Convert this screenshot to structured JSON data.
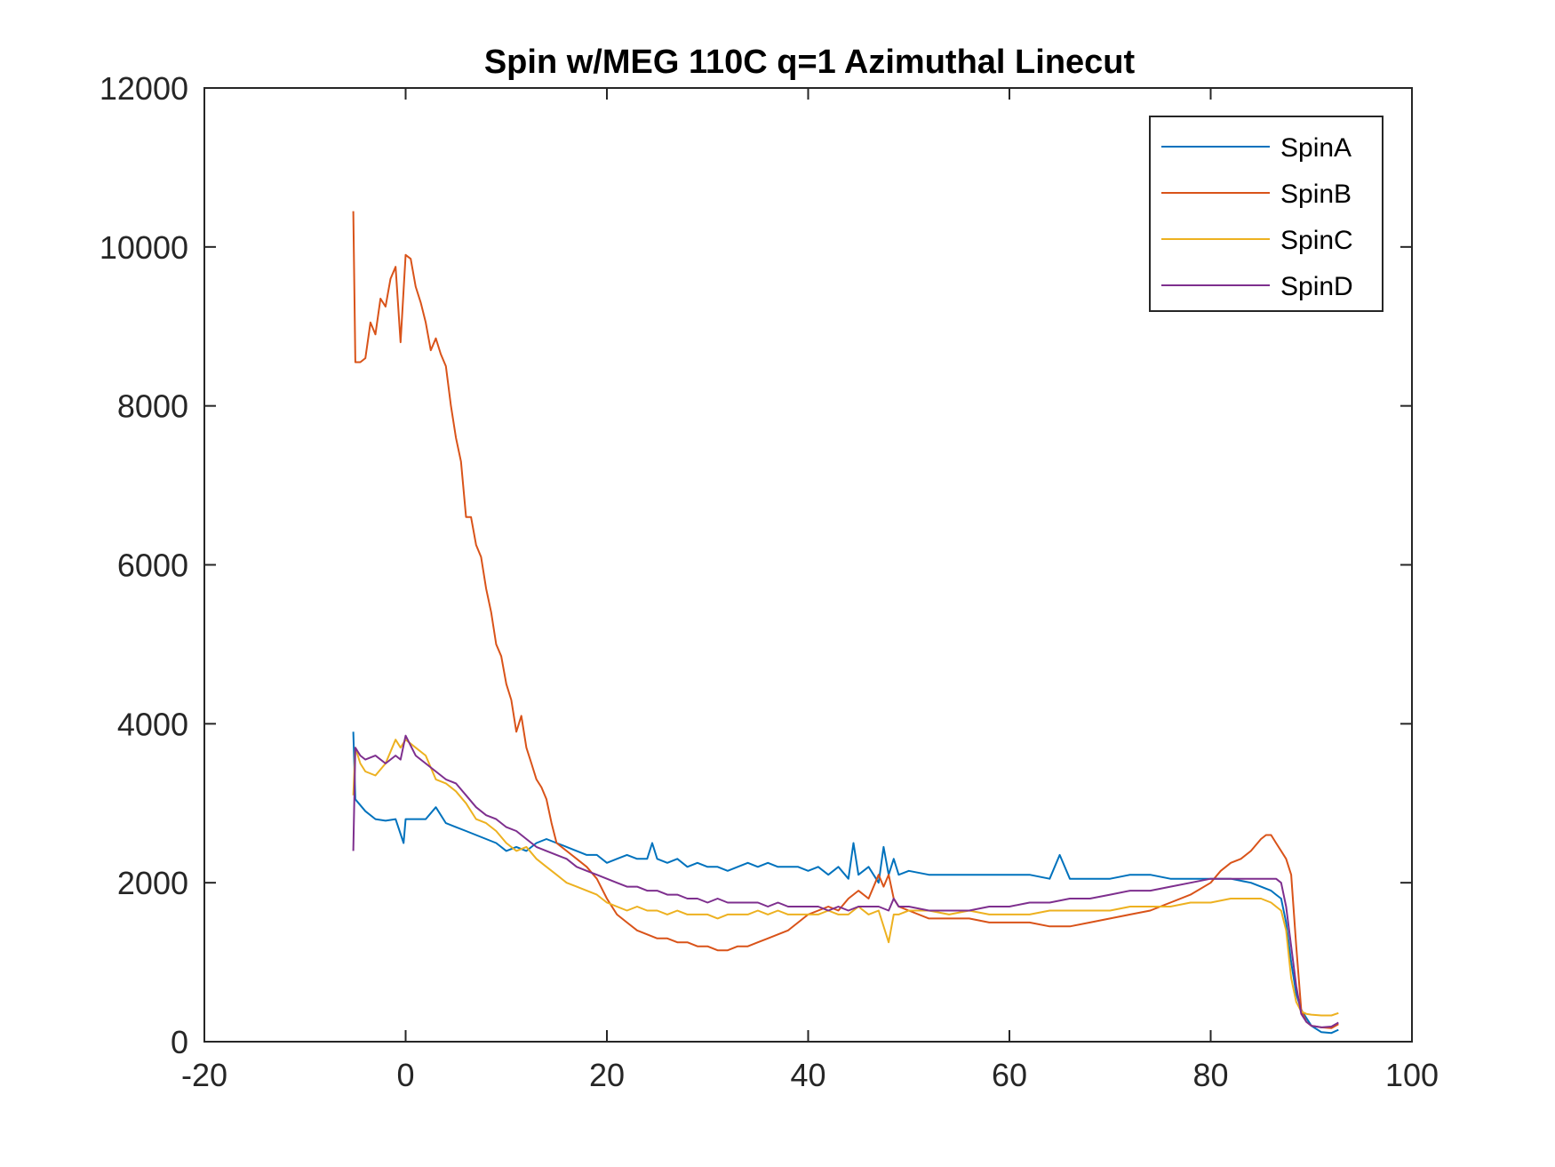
{
  "chart_data": {
    "type": "line",
    "title": "Spin w/MEG 110C q=1 Azimuthal Linecut",
    "xlabel": "",
    "ylabel": "",
    "xlim": [
      -20,
      100
    ],
    "ylim": [
      0,
      12000
    ],
    "xticks": [
      -20,
      0,
      20,
      40,
      60,
      80,
      100
    ],
    "yticks": [
      0,
      2000,
      4000,
      6000,
      8000,
      10000,
      12000
    ],
    "xtick_labels": [
      "-20",
      "0",
      "20",
      "40",
      "60",
      "80",
      "100"
    ],
    "ytick_labels": [
      "0",
      "2000",
      "4000",
      "6000",
      "8000",
      "10000",
      "12000"
    ],
    "grid": false,
    "legend_position": "top-right",
    "series": [
      {
        "name": "SpinA",
        "color": "#0072BD",
        "x": [
          -5.2,
          -5.0,
          -4.0,
          -3.0,
          -2.0,
          -1.0,
          -0.2,
          0.0,
          1.0,
          2.0,
          3.0,
          4.0,
          5.0,
          6.0,
          7.0,
          8.0,
          9.0,
          10.0,
          11.0,
          12.0,
          13.0,
          14.0,
          15.0,
          16.0,
          17.0,
          18.0,
          19.0,
          20.0,
          21.0,
          22.0,
          23.0,
          24.0,
          24.5,
          25.0,
          26.0,
          27.0,
          28.0,
          29.0,
          30.0,
          31.0,
          32.0,
          33.0,
          34.0,
          35.0,
          36.0,
          37.0,
          38.0,
          39.0,
          40.0,
          41.0,
          42.0,
          43.0,
          44.0,
          44.5,
          45.0,
          46.0,
          47.0,
          47.5,
          48.0,
          48.5,
          49.0,
          50.0,
          52.0,
          54.0,
          56.0,
          58.0,
          60.0,
          62.0,
          64.0,
          65.0,
          66.0,
          68.0,
          70.0,
          72.0,
          74.0,
          76.0,
          78.0,
          80.0,
          82.0,
          84.0,
          85.0,
          86.0,
          86.5,
          87.0,
          87.5,
          88.0,
          88.5,
          89.0,
          89.5,
          90.0,
          91.0,
          92.0,
          92.7
        ],
        "values": [
          3900,
          3050,
          2900,
          2800,
          2780,
          2800,
          2500,
          2800,
          2800,
          2800,
          2950,
          2750,
          2700,
          2650,
          2600,
          2550,
          2500,
          2400,
          2450,
          2400,
          2500,
          2550,
          2500,
          2450,
          2400,
          2350,
          2350,
          2250,
          2300,
          2350,
          2300,
          2300,
          2500,
          2300,
          2250,
          2300,
          2200,
          2250,
          2200,
          2200,
          2150,
          2200,
          2250,
          2200,
          2250,
          2200,
          2200,
          2200,
          2150,
          2200,
          2100,
          2200,
          2050,
          2500,
          2100,
          2200,
          2000,
          2450,
          2100,
          2300,
          2100,
          2150,
          2100,
          2100,
          2100,
          2100,
          2100,
          2100,
          2050,
          2350,
          2050,
          2050,
          2050,
          2100,
          2100,
          2050,
          2050,
          2050,
          2050,
          2000,
          1950,
          1900,
          1850,
          1800,
          1500,
          1000,
          600,
          400,
          300,
          200,
          120,
          110,
          150
        ]
      },
      {
        "name": "SpinB",
        "color": "#D95319",
        "x": [
          -5.2,
          -5.0,
          -4.5,
          -4.0,
          -3.5,
          -3.0,
          -2.5,
          -2.0,
          -1.5,
          -1.0,
          -0.5,
          0.0,
          0.5,
          1.0,
          1.5,
          2.0,
          2.5,
          3.0,
          3.5,
          4.0,
          4.5,
          5.0,
          5.5,
          6.0,
          6.5,
          7.0,
          7.5,
          8.0,
          8.5,
          9.0,
          9.5,
          10.0,
          10.5,
          11.0,
          11.5,
          12.0,
          12.5,
          13.0,
          13.5,
          14.0,
          14.5,
          15.0,
          16.0,
          17.0,
          18.0,
          19.0,
          20.0,
          21.0,
          22.0,
          23.0,
          24.0,
          25.0,
          26.0,
          27.0,
          28.0,
          29.0,
          30.0,
          31.0,
          32.0,
          33.0,
          34.0,
          35.0,
          36.0,
          37.0,
          38.0,
          39.0,
          40.0,
          41.0,
          42.0,
          43.0,
          44.0,
          45.0,
          46.0,
          47.0,
          47.5,
          48.0,
          48.5,
          49.0,
          50.0,
          52.0,
          54.0,
          56.0,
          58.0,
          60.0,
          62.0,
          64.0,
          66.0,
          68.0,
          70.0,
          72.0,
          74.0,
          76.0,
          78.0,
          80.0,
          81.0,
          82.0,
          83.0,
          84.0,
          85.0,
          85.5,
          86.0,
          86.5,
          87.0,
          87.5,
          88.0,
          88.5,
          89.0,
          89.5,
          90.0,
          91.0,
          92.0,
          92.7
        ],
        "values": [
          10450,
          8550,
          8550,
          8600,
          9050,
          8900,
          9350,
          9250,
          9600,
          9750,
          8800,
          9900,
          9850,
          9500,
          9300,
          9050,
          8700,
          8850,
          8650,
          8500,
          8000,
          7600,
          7300,
          6600,
          6600,
          6250,
          6100,
          5700,
          5400,
          5000,
          4850,
          4500,
          4300,
          3900,
          4100,
          3700,
          3500,
          3300,
          3200,
          3050,
          2750,
          2500,
          2400,
          2300,
          2200,
          2050,
          1800,
          1600,
          1500,
          1400,
          1350,
          1300,
          1300,
          1250,
          1250,
          1200,
          1200,
          1150,
          1150,
          1200,
          1200,
          1250,
          1300,
          1350,
          1400,
          1500,
          1600,
          1650,
          1700,
          1650,
          1800,
          1900,
          1800,
          2100,
          1950,
          2100,
          1800,
          1700,
          1650,
          1550,
          1550,
          1550,
          1500,
          1500,
          1500,
          1450,
          1450,
          1500,
          1550,
          1600,
          1650,
          1750,
          1850,
          2000,
          2150,
          2250,
          2300,
          2400,
          2550,
          2600,
          2600,
          2500,
          2400,
          2300,
          2100,
          1200,
          400,
          250,
          200,
          180,
          170,
          220
        ]
      },
      {
        "name": "SpinC",
        "color": "#EDB120",
        "x": [
          -5.2,
          -5.0,
          -4.5,
          -4.0,
          -3.0,
          -2.0,
          -1.0,
          -0.5,
          0.0,
          1.0,
          2.0,
          3.0,
          4.0,
          5.0,
          6.0,
          7.0,
          8.0,
          9.0,
          10.0,
          11.0,
          12.0,
          13.0,
          14.0,
          15.0,
          16.0,
          17.0,
          18.0,
          19.0,
          20.0,
          21.0,
          22.0,
          23.0,
          24.0,
          25.0,
          26.0,
          27.0,
          28.0,
          29.0,
          30.0,
          31.0,
          32.0,
          33.0,
          34.0,
          35.0,
          36.0,
          37.0,
          38.0,
          39.0,
          40.0,
          41.0,
          42.0,
          43.0,
          44.0,
          45.0,
          46.0,
          47.0,
          48.0,
          48.5,
          49.0,
          50.0,
          52.0,
          54.0,
          56.0,
          58.0,
          60.0,
          62.0,
          64.0,
          66.0,
          68.0,
          70.0,
          72.0,
          74.0,
          76.0,
          78.0,
          80.0,
          82.0,
          84.0,
          85.0,
          86.0,
          86.5,
          87.0,
          87.5,
          88.0,
          88.5,
          89.0,
          89.5,
          90.0,
          91.0,
          92.0,
          92.7
        ],
        "values": [
          3100,
          3700,
          3500,
          3400,
          3350,
          3500,
          3800,
          3700,
          3800,
          3700,
          3600,
          3300,
          3250,
          3150,
          3000,
          2800,
          2750,
          2650,
          2500,
          2400,
          2450,
          2300,
          2200,
          2100,
          2000,
          1950,
          1900,
          1850,
          1750,
          1700,
          1650,
          1700,
          1650,
          1650,
          1600,
          1650,
          1600,
          1600,
          1600,
          1550,
          1600,
          1600,
          1600,
          1650,
          1600,
          1650,
          1600,
          1600,
          1600,
          1600,
          1650,
          1600,
          1600,
          1700,
          1600,
          1650,
          1250,
          1600,
          1600,
          1650,
          1650,
          1600,
          1650,
          1600,
          1600,
          1600,
          1650,
          1650,
          1650,
          1650,
          1700,
          1700,
          1700,
          1750,
          1750,
          1800,
          1800,
          1800,
          1750,
          1700,
          1650,
          1400,
          800,
          500,
          380,
          350,
          340,
          330,
          330,
          360
        ]
      },
      {
        "name": "SpinD",
        "color": "#7E2F8E",
        "x": [
          -5.2,
          -5.0,
          -4.5,
          -4.0,
          -3.0,
          -2.0,
          -1.0,
          -0.5,
          0.0,
          1.0,
          2.0,
          3.0,
          4.0,
          5.0,
          6.0,
          7.0,
          8.0,
          9.0,
          10.0,
          11.0,
          12.0,
          13.0,
          14.0,
          15.0,
          16.0,
          17.0,
          18.0,
          19.0,
          20.0,
          21.0,
          22.0,
          23.0,
          24.0,
          25.0,
          26.0,
          27.0,
          28.0,
          29.0,
          30.0,
          31.0,
          32.0,
          33.0,
          34.0,
          35.0,
          36.0,
          37.0,
          38.0,
          39.0,
          40.0,
          41.0,
          42.0,
          43.0,
          44.0,
          45.0,
          46.0,
          47.0,
          48.0,
          48.5,
          49.0,
          50.0,
          52.0,
          54.0,
          56.0,
          58.0,
          60.0,
          62.0,
          64.0,
          66.0,
          68.0,
          70.0,
          72.0,
          74.0,
          76.0,
          78.0,
          80.0,
          82.0,
          84.0,
          85.0,
          86.0,
          86.5,
          87.0,
          87.5,
          88.0,
          88.5,
          89.0,
          89.5,
          90.0,
          91.0,
          92.0,
          92.7
        ],
        "values": [
          2400,
          3700,
          3600,
          3550,
          3600,
          3500,
          3600,
          3550,
          3850,
          3600,
          3500,
          3400,
          3300,
          3250,
          3100,
          2950,
          2850,
          2800,
          2700,
          2650,
          2550,
          2450,
          2400,
          2350,
          2300,
          2200,
          2150,
          2100,
          2050,
          2000,
          1950,
          1950,
          1900,
          1900,
          1850,
          1850,
          1800,
          1800,
          1750,
          1800,
          1750,
          1750,
          1750,
          1750,
          1700,
          1750,
          1700,
          1700,
          1700,
          1700,
          1650,
          1700,
          1650,
          1700,
          1700,
          1700,
          1650,
          1800,
          1700,
          1700,
          1650,
          1650,
          1650,
          1700,
          1700,
          1750,
          1750,
          1800,
          1800,
          1850,
          1900,
          1900,
          1950,
          2000,
          2050,
          2050,
          2050,
          2050,
          2050,
          2050,
          2000,
          1700,
          1200,
          700,
          350,
          250,
          200,
          180,
          190,
          240
        ]
      }
    ]
  }
}
